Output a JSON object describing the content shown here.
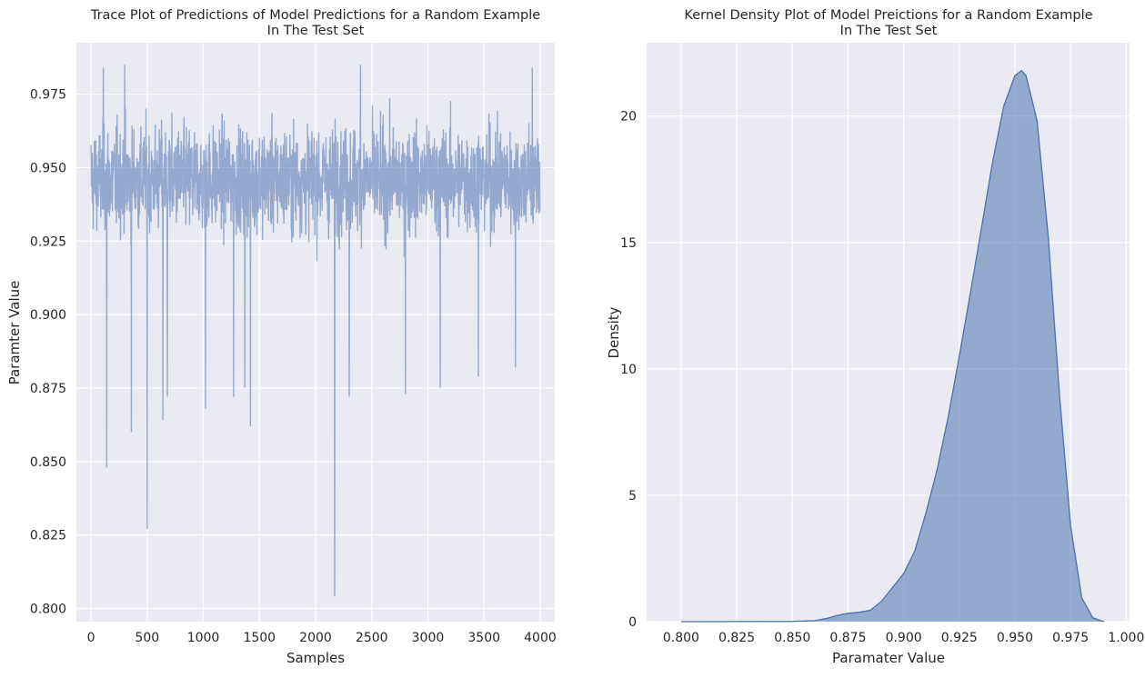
{
  "chart_data": [
    {
      "type": "line",
      "title": [
        "Trace Plot of Predictions of Model Predictions for a Random Example",
        "In The Test Set"
      ],
      "xlabel": "Samples",
      "ylabel": "Paramter Value",
      "xlim": [
        -130,
        4130
      ],
      "ylim": [
        0.7955,
        0.9925
      ],
      "xticks": [
        0,
        500,
        1000,
        1500,
        2000,
        2500,
        3000,
        3500,
        4000
      ],
      "xtick_labels": [
        "0",
        "500",
        "1000",
        "1500",
        "2000",
        "2500",
        "3000",
        "3500",
        "4000"
      ],
      "yticks": [
        0.8,
        0.825,
        0.85,
        0.875,
        0.9,
        0.925,
        0.95,
        0.975
      ],
      "ytick_labels": [
        "0.800",
        "0.825",
        "0.850",
        "0.875",
        "0.900",
        "0.925",
        "0.950",
        "0.975"
      ],
      "grid": true,
      "n_samples": 4000,
      "series": [
        {
          "color": "#4c72b0",
          "alpha": 0.55,
          "summary": {
            "center": 0.946,
            "spread": 0.02,
            "min": 0.804,
            "max": 0.985
          },
          "notable_points": [
            {
              "x": 140,
              "y": 0.848
            },
            {
              "x": 500,
              "y": 0.827
            },
            {
              "x": 360,
              "y": 0.86
            },
            {
              "x": 640,
              "y": 0.864
            },
            {
              "x": 1420,
              "y": 0.862
            },
            {
              "x": 2170,
              "y": 0.804
            },
            {
              "x": 1020,
              "y": 0.868
            },
            {
              "x": 680,
              "y": 0.872
            },
            {
              "x": 1270,
              "y": 0.872
            },
            {
              "x": 1370,
              "y": 0.875
            },
            {
              "x": 2300,
              "y": 0.872
            },
            {
              "x": 2800,
              "y": 0.873
            },
            {
              "x": 3110,
              "y": 0.875
            },
            {
              "x": 3450,
              "y": 0.879
            },
            {
              "x": 3780,
              "y": 0.882
            },
            {
              "x": 300,
              "y": 0.985
            },
            {
              "x": 2400,
              "y": 0.985
            },
            {
              "x": 3930,
              "y": 0.984
            },
            {
              "x": 110,
              "y": 0.984
            }
          ]
        }
      ]
    },
    {
      "type": "area",
      "title": [
        "Kernel Density Plot of Model Preictions for a Random Example",
        "In The Test Set"
      ],
      "xlabel": "Paramater Value",
      "ylabel": "Density",
      "xlim": [
        0.7845,
        1.0015
      ],
      "ylim": [
        0,
        22.9
      ],
      "xticks": [
        0.8,
        0.825,
        0.85,
        0.875,
        0.9,
        0.925,
        0.95,
        0.975,
        1.0
      ],
      "xtick_labels": [
        "0.800",
        "0.825",
        "0.850",
        "0.875",
        "0.900",
        "0.925",
        "0.950",
        "0.975",
        "1.000"
      ],
      "yticks": [
        0,
        5,
        10,
        15,
        20
      ],
      "ytick_labels": [
        "0",
        "5",
        "10",
        "15",
        "20"
      ],
      "grid": true,
      "series": [
        {
          "color": "#4c72b0",
          "alpha": 0.55,
          "x": [
            0.8,
            0.85,
            0.86,
            0.865,
            0.87,
            0.875,
            0.88,
            0.885,
            0.89,
            0.895,
            0.9,
            0.905,
            0.91,
            0.915,
            0.92,
            0.925,
            0.93,
            0.935,
            0.94,
            0.945,
            0.95,
            0.953,
            0.955,
            0.96,
            0.965,
            0.97,
            0.975,
            0.98,
            0.985,
            0.99
          ],
          "y": [
            0,
            0.01,
            0.04,
            0.12,
            0.24,
            0.33,
            0.37,
            0.45,
            0.8,
            1.35,
            1.9,
            2.8,
            4.3,
            6.0,
            8.1,
            10.5,
            13.0,
            15.6,
            18.2,
            20.4,
            21.6,
            21.8,
            21.6,
            19.8,
            15.2,
            9.0,
            3.8,
            0.95,
            0.15,
            0.0
          ]
        }
      ]
    }
  ]
}
